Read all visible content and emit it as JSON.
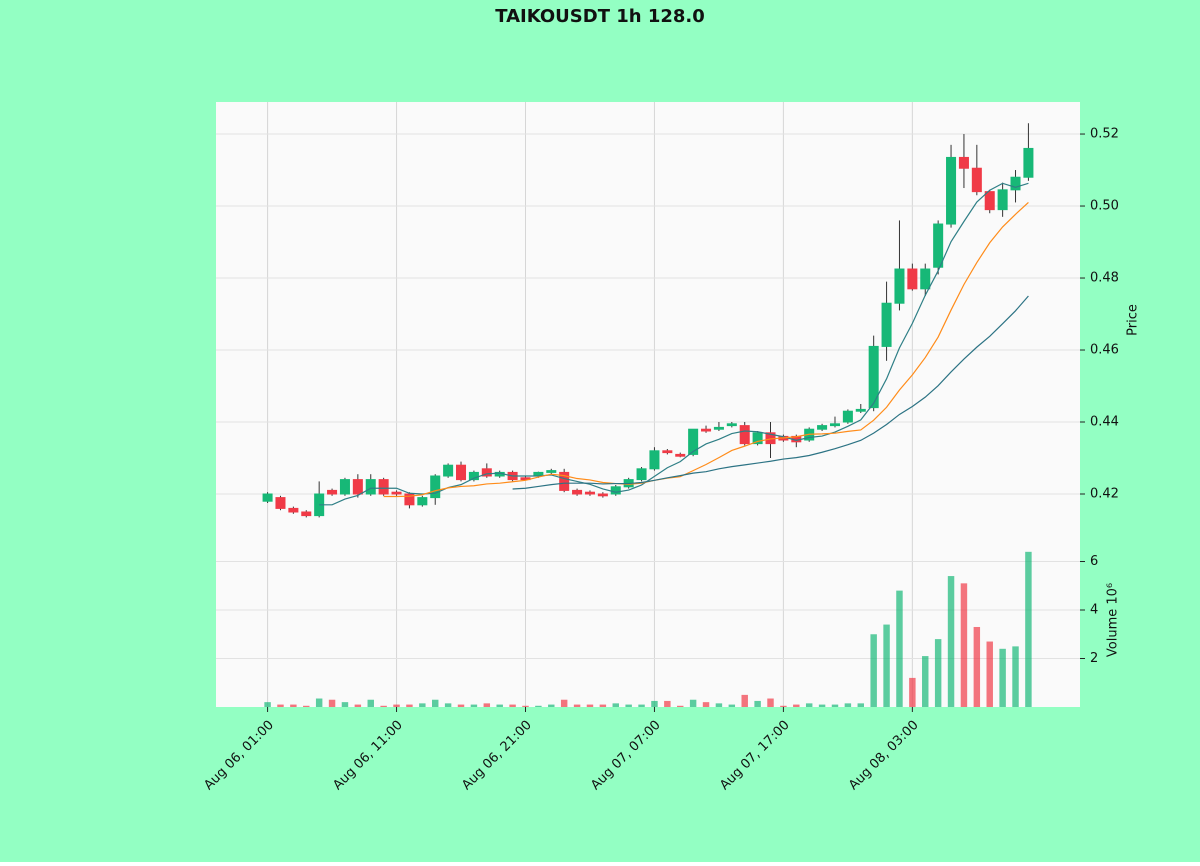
{
  "chart_data": {
    "type": "candlestick",
    "title": "TAIKOUSDT 1h 128.0",
    "y_label": "Price",
    "y2_label": "Volume  10⁶",
    "up_color": "#17b877",
    "down_color": "#f03a47",
    "background": "#93ffc3",
    "panel_color": "#fafafa",
    "grid": true,
    "xlim": [
      -4,
      63
    ],
    "xticks": [
      {
        "value": 0,
        "label": "Aug 06, 01:00"
      },
      {
        "value": 10,
        "label": "Aug 06, 11:00"
      },
      {
        "value": 20,
        "label": "Aug 06, 21:00"
      },
      {
        "value": 30,
        "label": "Aug 07, 07:00"
      },
      {
        "value": 40,
        "label": "Aug 07, 17:00"
      },
      {
        "value": 50,
        "label": "Aug 08, 03:00"
      }
    ],
    "ylim": [
      0.41,
      0.5289
    ],
    "yticks": [
      0.42,
      0.44,
      0.46,
      0.48,
      {
        "value": 0.5,
        "label": "0.50"
      },
      0.52
    ],
    "y2lim": [
      0,
      7.3
    ],
    "y2ticks": [
      2,
      4,
      6
    ],
    "open": [
      0.418,
      0.419,
      0.416,
      0.415,
      0.414,
      0.421,
      0.42,
      0.424,
      0.42,
      0.424,
      0.4205,
      0.42,
      0.417,
      0.419,
      0.425,
      0.428,
      0.424,
      0.427,
      0.425,
      0.426,
      0.4245,
      0.425,
      0.426,
      0.426,
      0.421,
      0.4205,
      0.42,
      0.42,
      0.422,
      0.424,
      0.427,
      0.432,
      0.431,
      0.431,
      0.438,
      0.438,
      0.439,
      0.439,
      0.434,
      0.437,
      0.436,
      0.436,
      0.435,
      0.438,
      0.439,
      0.44,
      0.443,
      0.444,
      0.461,
      0.473,
      0.4825,
      0.477,
      0.483,
      0.495,
      0.5135,
      0.5105,
      0.504,
      0.499,
      0.5045,
      0.508
    ],
    "high": [
      0.4205,
      0.4195,
      0.4165,
      0.4155,
      0.4235,
      0.4215,
      0.4245,
      0.4255,
      0.4255,
      0.4245,
      0.421,
      0.4205,
      0.4195,
      0.4255,
      0.4285,
      0.429,
      0.4265,
      0.4285,
      0.4265,
      0.4265,
      0.425,
      0.4262,
      0.427,
      0.427,
      0.4215,
      0.421,
      0.4205,
      0.4225,
      0.4245,
      0.4275,
      0.433,
      0.4325,
      0.4315,
      0.438,
      0.439,
      0.44,
      0.44,
      0.44,
      0.4375,
      0.44,
      0.4365,
      0.4365,
      0.4385,
      0.4395,
      0.4415,
      0.4435,
      0.445,
      0.464,
      0.479,
      0.496,
      0.484,
      0.484,
      0.496,
      0.517,
      0.52,
      0.517,
      0.5045,
      0.5065,
      0.51,
      0.523
    ],
    "low": [
      0.4175,
      0.4155,
      0.4145,
      0.4135,
      0.4135,
      0.4195,
      0.4195,
      0.419,
      0.4195,
      0.4195,
      0.4195,
      0.416,
      0.4165,
      0.417,
      0.4245,
      0.4235,
      0.4235,
      0.4245,
      0.4245,
      0.4235,
      0.4238,
      0.4245,
      0.4255,
      0.4205,
      0.4195,
      0.4195,
      0.419,
      0.4195,
      0.4215,
      0.4235,
      0.4265,
      0.431,
      0.4302,
      0.4305,
      0.437,
      0.4375,
      0.4385,
      0.4335,
      0.4335,
      0.43,
      0.4345,
      0.433,
      0.4345,
      0.4375,
      0.4385,
      0.4395,
      0.4425,
      0.443,
      0.457,
      0.471,
      0.4765,
      0.475,
      0.481,
      0.494,
      0.505,
      0.503,
      0.498,
      0.497,
      0.501,
      0.507
    ],
    "close": [
      0.42,
      0.416,
      0.415,
      0.414,
      0.42,
      0.42,
      0.424,
      0.42,
      0.424,
      0.42,
      0.42,
      0.417,
      0.419,
      0.425,
      0.428,
      0.424,
      0.426,
      0.425,
      0.426,
      0.424,
      0.424,
      0.426,
      0.4265,
      0.421,
      0.42,
      0.42,
      0.4195,
      0.422,
      0.424,
      0.427,
      0.432,
      0.4315,
      0.4305,
      0.438,
      0.4375,
      0.4385,
      0.4395,
      0.434,
      0.437,
      0.434,
      0.435,
      0.4345,
      0.438,
      0.439,
      0.4395,
      0.443,
      0.4435,
      0.461,
      0.473,
      0.4825,
      0.477,
      0.4825,
      0.495,
      0.5135,
      0.5105,
      0.504,
      0.499,
      0.5045,
      0.508,
      0.516
    ],
    "volume": [
      0.2,
      0.1,
      0.1,
      0.05,
      0.35,
      0.3,
      0.2,
      0.1,
      0.3,
      0.05,
      0.1,
      0.1,
      0.15,
      0.3,
      0.15,
      0.1,
      0.1,
      0.15,
      0.1,
      0.1,
      0.05,
      0.05,
      0.1,
      0.3,
      0.1,
      0.1,
      0.1,
      0.15,
      0.1,
      0.1,
      0.25,
      0.25,
      0.05,
      0.3,
      0.2,
      0.15,
      0.1,
      0.5,
      0.25,
      0.35,
      0.05,
      0.1,
      0.15,
      0.1,
      0.1,
      0.15,
      0.15,
      3.0,
      3.4,
      4.8,
      1.2,
      2.1,
      2.8,
      5.4,
      5.1,
      3.3,
      2.7,
      2.4,
      2.5,
      6.4
    ],
    "moving_averages": [
      {
        "color": "#2f7f86",
        "values": [
          null,
          null,
          null,
          null,
          0.417,
          0.417,
          0.4186,
          0.4196,
          0.4216,
          0.4216,
          0.4216,
          0.4202,
          0.42,
          0.4202,
          0.4218,
          0.4226,
          0.4244,
          0.4256,
          0.4258,
          0.425,
          0.425,
          0.425,
          0.4253,
          0.4243,
          0.4235,
          0.4227,
          0.4214,
          0.4205,
          0.4211,
          0.4225,
          0.4249,
          0.4273,
          0.429,
          0.4318,
          0.4339,
          0.4352,
          0.4368,
          0.4375,
          0.4373,
          0.4366,
          0.4359,
          0.4349,
          0.4357,
          0.4361,
          0.4372,
          0.4388,
          0.4406,
          0.4452,
          0.452,
          0.4606,
          0.4674,
          0.4752,
          0.482,
          0.4901,
          0.4957,
          0.5011,
          0.5044,
          0.5063,
          0.5052,
          0.5063
        ]
      },
      {
        "color": "#ff8c1a",
        "values": [
          null,
          null,
          null,
          null,
          null,
          null,
          null,
          null,
          null,
          0.4193,
          0.4193,
          0.4194,
          0.4198,
          0.4209,
          0.4217,
          0.4221,
          0.4223,
          0.4228,
          0.423,
          0.4234,
          0.4238,
          0.4247,
          0.4255,
          0.4251,
          0.4243,
          0.4239,
          0.4232,
          0.4229,
          0.4227,
          0.423,
          0.4238,
          0.4244,
          0.4248,
          0.4265,
          0.4282,
          0.4301,
          0.4321,
          0.4333,
          0.4346,
          0.4353,
          0.4356,
          0.4359,
          0.4366,
          0.4367,
          0.4369,
          0.4374,
          0.4378,
          0.4405,
          0.4441,
          0.4489,
          0.4531,
          0.4579,
          0.4636,
          0.4711,
          0.4782,
          0.4843,
          0.4898,
          0.4942,
          0.4977,
          0.501
        ]
      },
      {
        "color": "#2c7384",
        "values": [
          null,
          null,
          null,
          null,
          null,
          null,
          null,
          null,
          null,
          null,
          null,
          null,
          null,
          null,
          null,
          null,
          null,
          null,
          null,
          0.4214,
          0.4216,
          0.4221,
          0.4226,
          0.423,
          0.423,
          0.423,
          0.4228,
          0.4229,
          0.4229,
          0.4232,
          0.4238,
          0.4245,
          0.4251,
          0.4258,
          0.4262,
          0.427,
          0.4276,
          0.4281,
          0.4286,
          0.4291,
          0.4297,
          0.4301,
          0.4307,
          0.4316,
          0.4326,
          0.4337,
          0.4349,
          0.4369,
          0.4393,
          0.4421,
          0.4443,
          0.4469,
          0.4501,
          0.4539,
          0.4575,
          0.4608,
          0.4638,
          0.4673,
          0.4709,
          0.475
        ]
      }
    ]
  }
}
